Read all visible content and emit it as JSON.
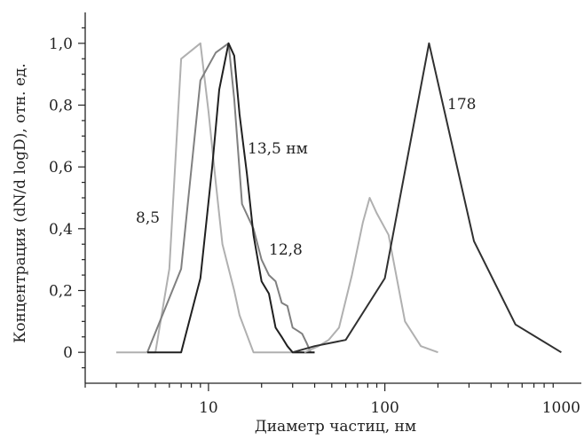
{
  "chart_data": {
    "type": "line",
    "title": "",
    "xlabel": "Диаметр частиц, нм",
    "ylabel": "Концентрация (dN/d logD), отн. ед.",
    "xscale": "log",
    "xlim": [
      2,
      1300
    ],
    "ylim": [
      -0.1,
      1.1
    ],
    "x_ticks": [
      10,
      100,
      1000
    ],
    "x_tick_labels": [
      "10",
      "100",
      "1000"
    ],
    "y_ticks": [
      0,
      0.2,
      0.4,
      0.6,
      0.8,
      1.0
    ],
    "y_tick_labels": [
      "0",
      "0,2",
      "0,4",
      "0,6",
      "0,8",
      "1,0"
    ],
    "grid": false,
    "legend": "none",
    "series": [
      {
        "label": "8,5",
        "color": "#b0b0b0",
        "points": [
          [
            3,
            0
          ],
          [
            5,
            0
          ],
          [
            6,
            0.27
          ],
          [
            7,
            0.95
          ],
          [
            9,
            1.0
          ],
          [
            10,
            0.78
          ],
          [
            11,
            0.55
          ],
          [
            12,
            0.35
          ],
          [
            14,
            0.2
          ],
          [
            15,
            0.12
          ],
          [
            18,
            0
          ],
          [
            25,
            0
          ],
          [
            40,
            0
          ]
        ]
      },
      {
        "label": "12,8",
        "color": "#808080",
        "points": [
          [
            4.5,
            0
          ],
          [
            7,
            0.27
          ],
          [
            9,
            0.88
          ],
          [
            11,
            0.97
          ],
          [
            13,
            1.0
          ],
          [
            14,
            0.82
          ],
          [
            15.5,
            0.48
          ],
          [
            18,
            0.4
          ],
          [
            20,
            0.3
          ],
          [
            22,
            0.25
          ],
          [
            24,
            0.23
          ],
          [
            26,
            0.16
          ],
          [
            28,
            0.15
          ],
          [
            30,
            0.08
          ],
          [
            32,
            0.07
          ],
          [
            34,
            0.06
          ],
          [
            36,
            0.03
          ],
          [
            38,
            0
          ]
        ]
      },
      {
        "label": "13,5 нм",
        "color": "#202020",
        "points": [
          [
            4.5,
            0
          ],
          [
            7,
            0
          ],
          [
            9,
            0.24
          ],
          [
            10.5,
            0.6
          ],
          [
            11.5,
            0.85
          ],
          [
            13,
            1.0
          ],
          [
            14,
            0.96
          ],
          [
            15,
            0.77
          ],
          [
            16.5,
            0.58
          ],
          [
            18,
            0.38
          ],
          [
            20,
            0.23
          ],
          [
            22,
            0.19
          ],
          [
            24,
            0.08
          ],
          [
            26,
            0.05
          ],
          [
            28,
            0.02
          ],
          [
            30,
            0
          ],
          [
            40,
            0
          ]
        ]
      },
      {
        "label": "",
        "color": "#b0b0b0",
        "points": [
          [
            35,
            0
          ],
          [
            42,
            0.02
          ],
          [
            48,
            0.04
          ],
          [
            55,
            0.08
          ],
          [
            65,
            0.25
          ],
          [
            75,
            0.42
          ],
          [
            82,
            0.5
          ],
          [
            90,
            0.45
          ],
          [
            105,
            0.38
          ],
          [
            130,
            0.1
          ],
          [
            160,
            0.02
          ],
          [
            200,
            0
          ]
        ]
      },
      {
        "label": "178",
        "color": "#303030",
        "points": [
          [
            30,
            0
          ],
          [
            40,
            0.02
          ],
          [
            60,
            0.04
          ],
          [
            100,
            0.24
          ],
          [
            178,
            1.0
          ],
          [
            320,
            0.36
          ],
          [
            550,
            0.09
          ],
          [
            1000,
            0
          ]
        ]
      }
    ]
  }
}
